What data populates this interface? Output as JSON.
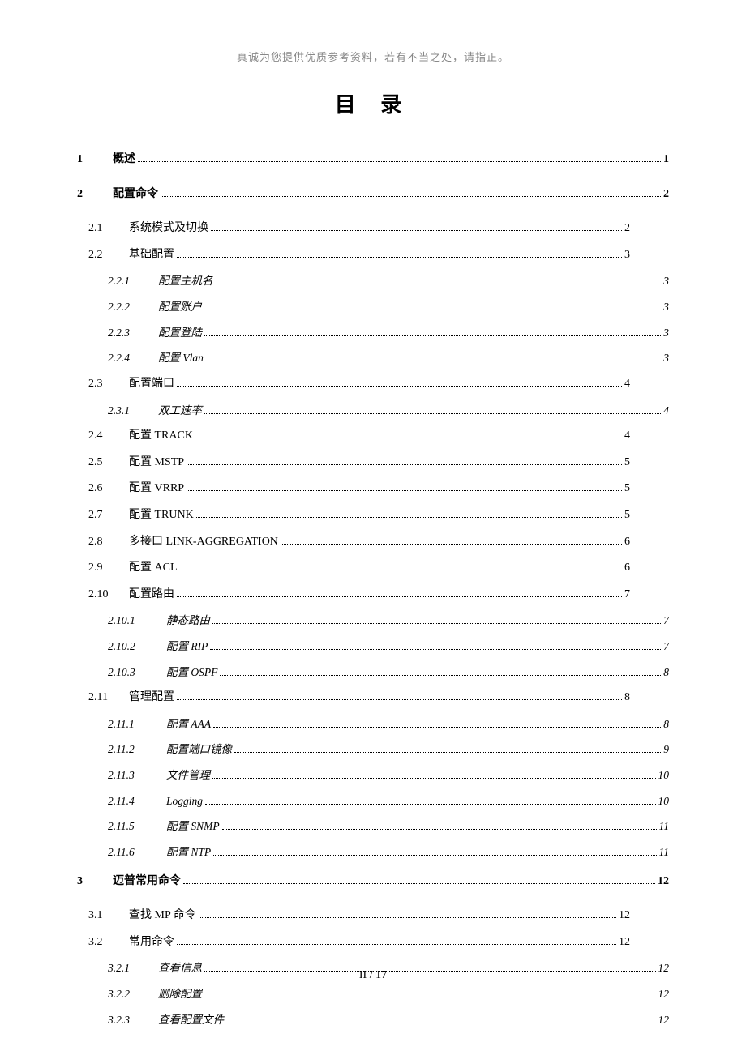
{
  "header_note": "真诚为您提供优质参考资料，若有不当之处，请指正。",
  "title": "目  录",
  "footer": "II  / 17",
  "toc": {
    "entries": [
      {
        "level": "level-1",
        "num": "1",
        "label": "概述",
        "page": "1"
      },
      {
        "level": "level-1",
        "num": "2",
        "label": "配置命令",
        "page": "2"
      },
      {
        "level": "level-2-short",
        "num": "2.1",
        "label": "系统模式及切换",
        "page": "2"
      },
      {
        "level": "level-2-short",
        "num": "2.2",
        "label": "基础配置",
        "page": "3"
      },
      {
        "level": "level-3",
        "num": "2.2.1",
        "label": "配置主机名",
        "page": "3"
      },
      {
        "level": "level-3",
        "num": "2.2.2",
        "label": "配置账户",
        "page": "3"
      },
      {
        "level": "level-3",
        "num": "2.2.3",
        "label": "配置登陆",
        "page": "3"
      },
      {
        "level": "level-3",
        "num": "2.2.4",
        "label": "配置 Vlan",
        "page": "3"
      },
      {
        "level": "level-2-short",
        "num": "2.3",
        "label": "配置端口",
        "page": "4"
      },
      {
        "level": "level-3",
        "num": "2.3.1",
        "label": "双工速率",
        "page": "4"
      },
      {
        "level": "level-2-short",
        "num": "2.4",
        "label": "配置 TRACK",
        "page": "4",
        "smallcaps": true
      },
      {
        "level": "level-2-short",
        "num": "2.5",
        "label": "配置 MSTP",
        "page": "5"
      },
      {
        "level": "level-2-short",
        "num": "2.6",
        "label": "配置 VRRP",
        "page": "5"
      },
      {
        "level": "level-2-short",
        "num": "2.7",
        "label": "配置 TRUNK",
        "page": "5",
        "smallcaps": true
      },
      {
        "level": "level-2-short",
        "num": "2.8",
        "label": "多接口 LINK-AGGREGATION",
        "page": "6",
        "smallcaps": true
      },
      {
        "level": "level-2-short",
        "num": "2.9",
        "label": "配置 ACL",
        "page": "6"
      },
      {
        "level": "level-2-short",
        "num": "2.10",
        "label": "配置路由",
        "page": "7"
      },
      {
        "level": "level-3-wide",
        "num": "2.10.1",
        "label": "静态路由",
        "page": "7"
      },
      {
        "level": "level-3-wide",
        "num": "2.10.2",
        "label": "配置 RIP",
        "page": "7"
      },
      {
        "level": "level-3-wide",
        "num": "2.10.3",
        "label": "配置 OSPF",
        "page": "8"
      },
      {
        "level": "level-2-short",
        "num": "2.11",
        "label": "管理配置",
        "page": "8"
      },
      {
        "level": "level-3-wide",
        "num": "2.11.1",
        "label": "配置 AAA",
        "page": "8"
      },
      {
        "level": "level-3-wide",
        "num": "2.11.2",
        "label": "配置端口镜像",
        "page": "9"
      },
      {
        "level": "level-3-wide",
        "num": "2.11.3",
        "label": "文件管理",
        "page": "10"
      },
      {
        "level": "level-3-wide",
        "num": "2.11.4",
        "label": "Logging",
        "page": "10"
      },
      {
        "level": "level-3-wide",
        "num": "2.11.5",
        "label": "配置 SNMP",
        "page": "11"
      },
      {
        "level": "level-3-wide",
        "num": "2.11.6",
        "label": "配置 NTP",
        "page": "11"
      },
      {
        "level": "level-1",
        "num": "3",
        "label": "迈普常用命令",
        "page": "12"
      },
      {
        "level": "level-2-short",
        "num": "3.1",
        "label": "查找 MP 命令",
        "page": "12"
      },
      {
        "level": "level-2-short",
        "num": "3.2",
        "label": "常用命令",
        "page": "12"
      },
      {
        "level": "level-3",
        "num": "3.2.1",
        "label": "查看信息",
        "page": "12"
      },
      {
        "level": "level-3",
        "num": "3.2.2",
        "label": "删除配置",
        "page": "12"
      },
      {
        "level": "level-3",
        "num": "3.2.3",
        "label": "查看配置文件",
        "page": "12"
      }
    ]
  }
}
